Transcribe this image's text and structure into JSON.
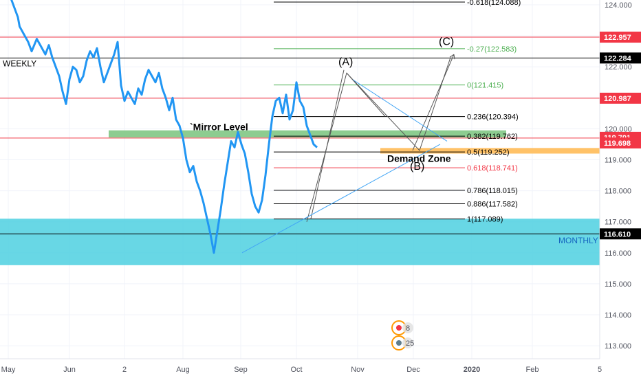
{
  "chart_data": {
    "type": "line",
    "timeframe_label": "WEEKLY",
    "y_ticks": [
      "124.000",
      "123.000",
      "122.000",
      "121.000",
      "120.000",
      "119.000",
      "118.000",
      "117.000",
      "116.000",
      "115.000",
      "114.000",
      "113.000"
    ],
    "x_ticks": [
      "May",
      "Jun",
      "2",
      "Aug",
      "Sep",
      "Oct",
      "Nov",
      "Dec",
      "2020",
      "Feb",
      "5"
    ],
    "series_color": "#2196f3",
    "x": [
      0,
      2,
      4,
      5,
      8,
      10,
      12,
      15,
      18,
      20,
      22,
      24,
      26,
      28,
      30,
      32,
      34,
      36,
      38,
      40,
      42,
      44,
      46,
      48,
      50,
      52,
      54,
      56,
      58,
      60,
      62,
      64,
      66,
      68,
      70,
      72,
      74,
      76,
      78,
      80,
      82,
      84,
      86,
      88,
      90,
      92,
      94,
      96,
      98,
      100,
      102,
      104,
      106,
      108,
      110,
      112,
      114,
      116,
      118,
      120,
      122,
      124,
      126,
      128,
      130,
      132,
      134,
      136,
      138,
      140,
      142,
      144,
      146,
      148,
      150,
      152,
      154,
      156,
      158,
      160,
      162,
      164,
      166,
      168,
      170,
      172,
      174,
      176,
      178
    ],
    "y": [
      124.2,
      123.9,
      123.6,
      123.3,
      123.0,
      122.8,
      122.5,
      122.9,
      122.6,
      122.4,
      122.7,
      122.3,
      122.0,
      121.7,
      121.2,
      120.8,
      121.6,
      122.0,
      121.9,
      121.5,
      121.7,
      122.2,
      122.5,
      122.3,
      122.6,
      122.0,
      121.5,
      121.8,
      122.1,
      122.4,
      122.8,
      121.4,
      120.9,
      121.2,
      121.0,
      120.8,
      121.3,
      121.1,
      121.6,
      121.9,
      121.7,
      121.5,
      121.8,
      121.3,
      121.0,
      120.6,
      121.0,
      120.3,
      120.1,
      119.7,
      119.0,
      118.6,
      118.8,
      118.3,
      118.0,
      117.6,
      117.1,
      116.6,
      116.0,
      116.7,
      117.4,
      118.2,
      118.9,
      119.6,
      119.4,
      119.9,
      119.5,
      119.2,
      118.6,
      117.9,
      117.5,
      117.3,
      117.7,
      118.5,
      119.5,
      120.4,
      120.9,
      121.0,
      120.5,
      121.1,
      120.3,
      120.6,
      121.5,
      120.9,
      120.7,
      120.1,
      119.8,
      119.5,
      119.4
    ],
    "price_levels": {
      "weekly_red_1": 122.957,
      "weekly_black": 122.284,
      "weekly_red_2": 120.987,
      "mirror_level": 119.701,
      "demand_zone": 119.698,
      "monthly": 116.61
    },
    "price_tags": [
      {
        "label": "122.957",
        "color": "#f23645"
      },
      {
        "label": "122.284",
        "color": "#000000"
      },
      {
        "label": "120.987",
        "color": "#f23645"
      },
      {
        "label": "119.701",
        "color": "#f23645"
      },
      {
        "label": "119.698",
        "color": "#f23645"
      },
      {
        "label": "116.610",
        "color": "#000000"
      }
    ],
    "fib_levels": [
      {
        "label": "-0.618(124.088)",
        "color": "#000000"
      },
      {
        "label": "-0.27(122.583)",
        "color": "#4caf50"
      },
      {
        "label": "0(121.415)",
        "color": "#4caf50"
      },
      {
        "label": "0.236(120.394)",
        "color": "#000000"
      },
      {
        "label": "0.382(119.762)",
        "color": "#000000"
      },
      {
        "label": "0.5(119.252)",
        "color": "#000000"
      },
      {
        "label": "0.618(118.741)",
        "color": "#f23645"
      },
      {
        "label": "0.786(118.015)",
        "color": "#000000"
      },
      {
        "label": "0.886(117.582)",
        "color": "#000000"
      },
      {
        "label": "1(117.089)",
        "color": "#000000"
      }
    ],
    "annotations": {
      "mirror_level": "`Mirror Level",
      "demand_zone": "Demand Zone",
      "monthly": "MONTHLY",
      "wave_a": "(A)",
      "wave_b": "(B)",
      "wave_c": "(C)"
    },
    "event_badges": [
      "8",
      "25"
    ],
    "zones_colors": {
      "monthly_zone": "#4dd0e1",
      "mirror_zone": "#81c784",
      "demand_zone": "#ffb74d"
    }
  }
}
